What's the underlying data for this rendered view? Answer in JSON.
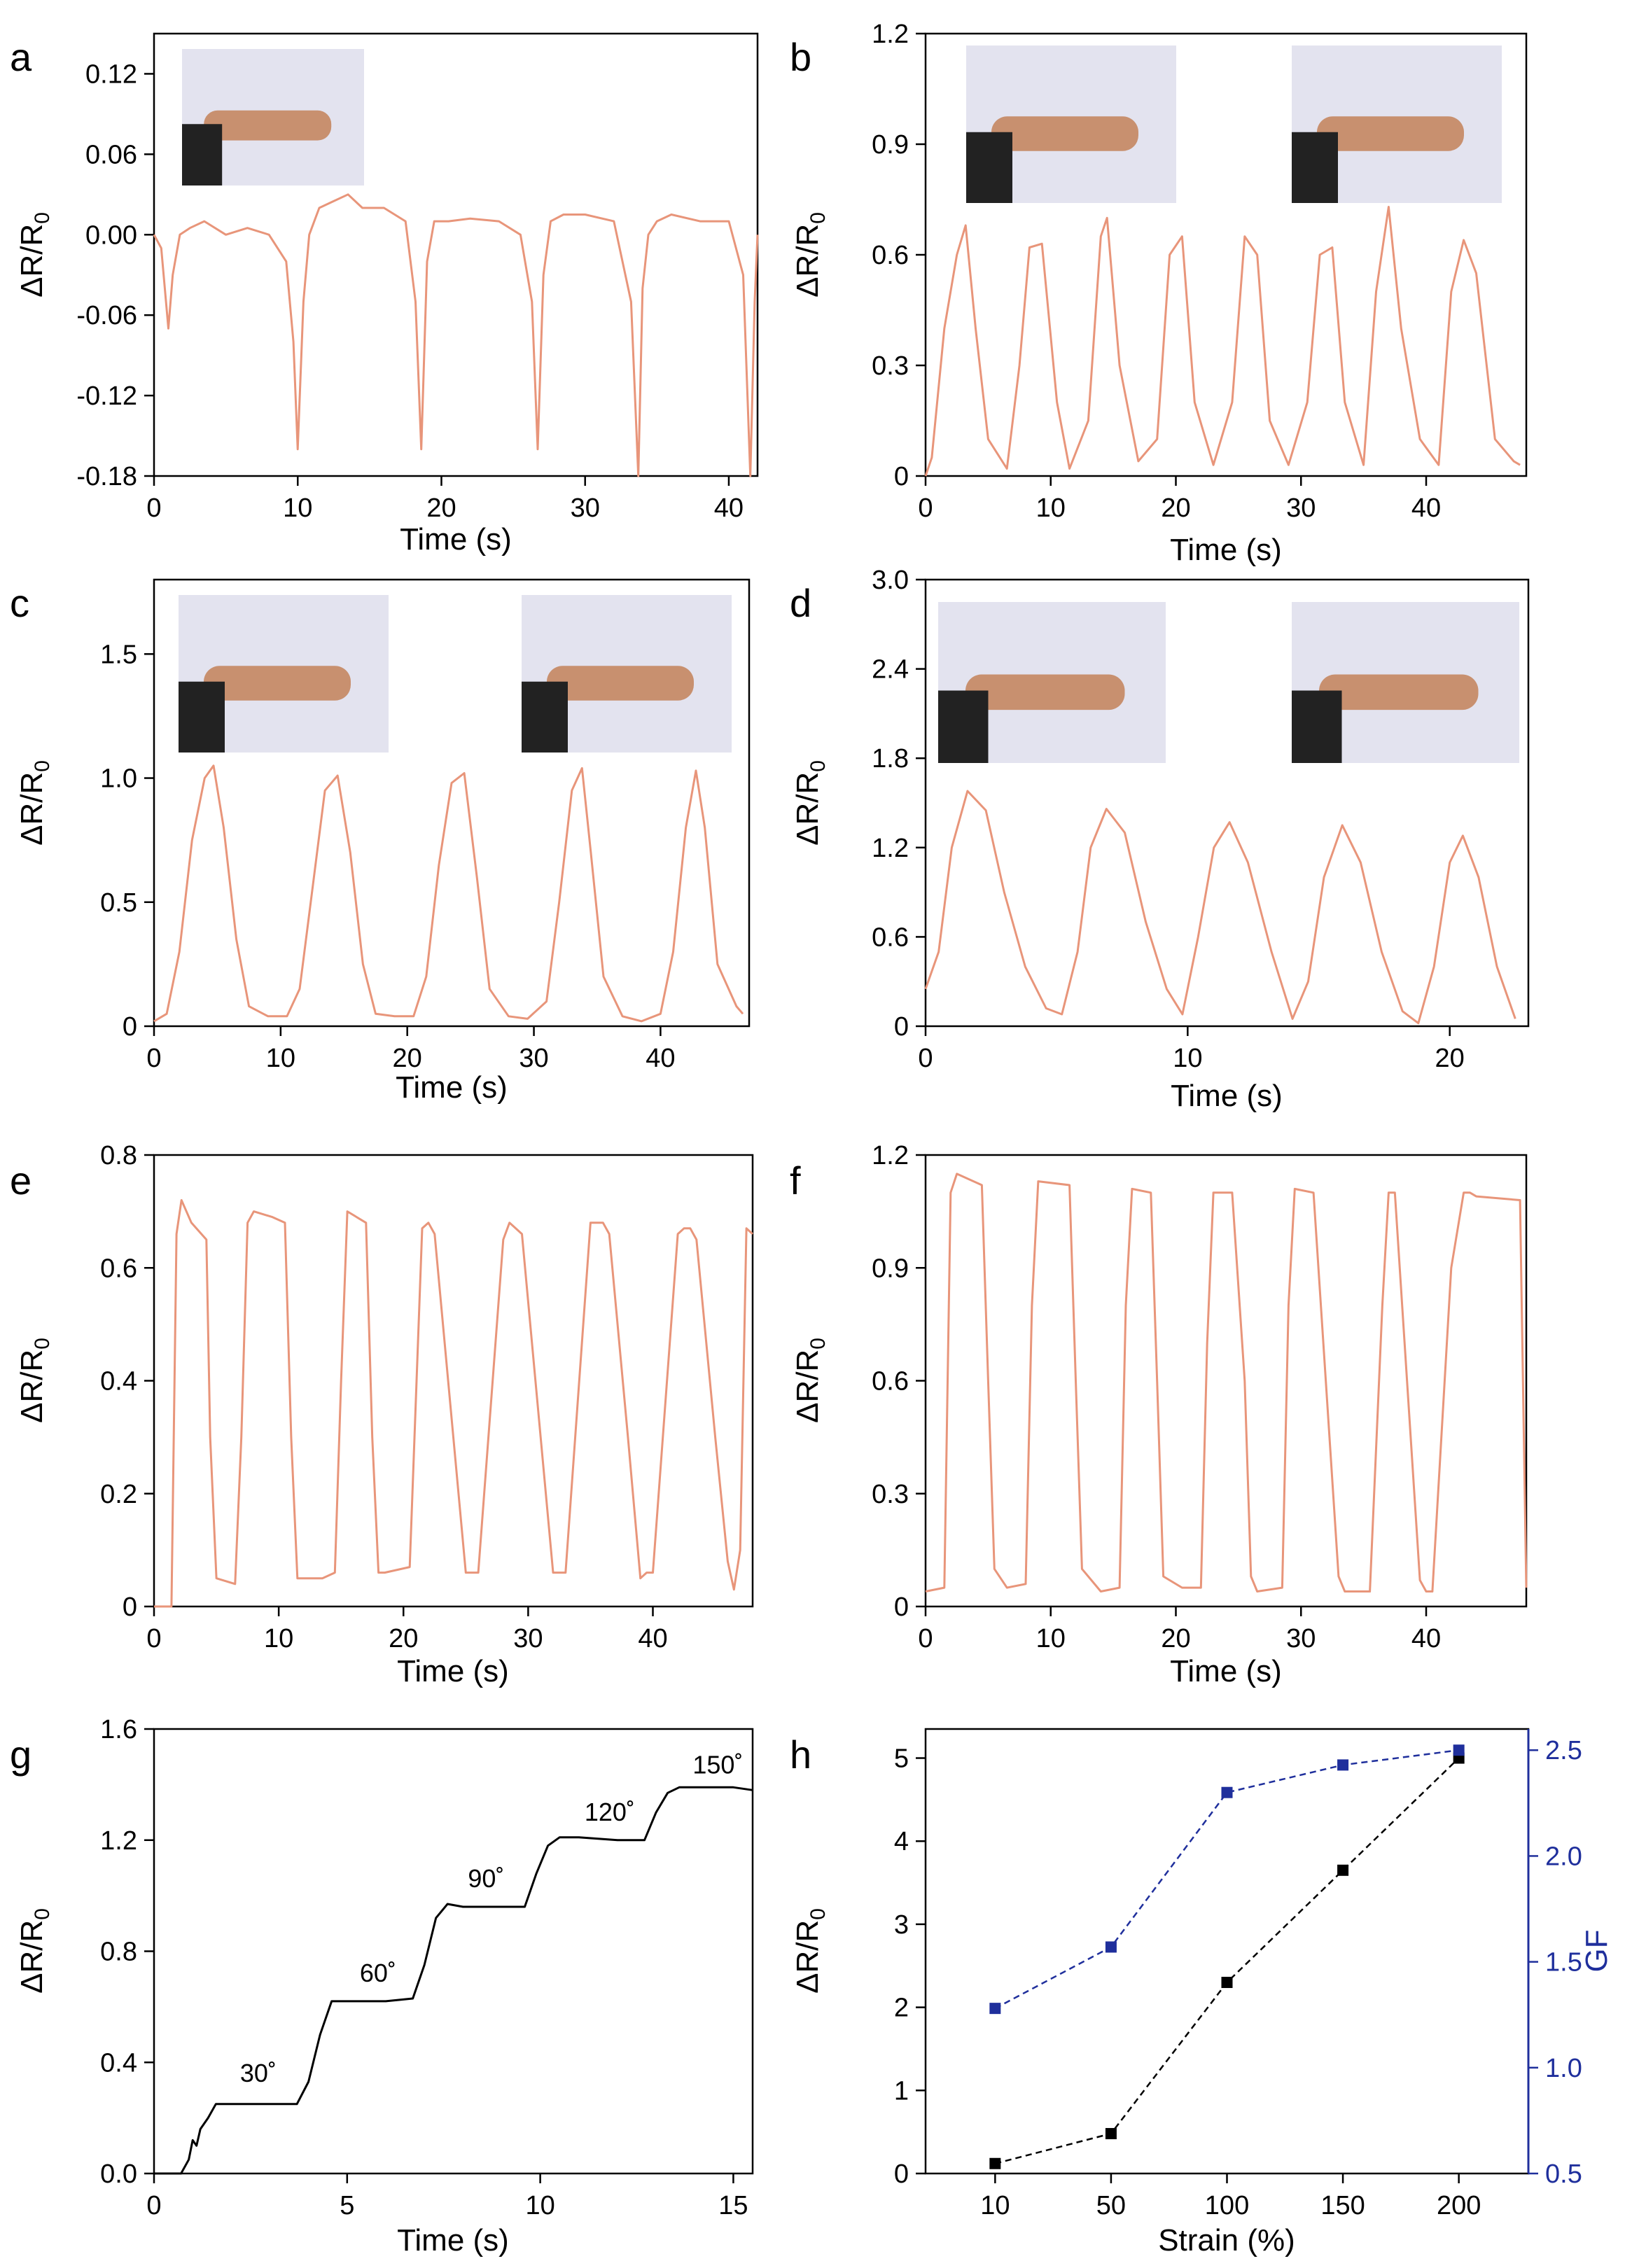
{
  "chart_data": [
    {
      "panel": "a",
      "type": "line",
      "xlabel": "Time (s)",
      "ylabel": "ΔR/R0",
      "xlim": [
        0,
        42
      ],
      "ylim": [
        -0.18,
        0.15
      ],
      "xticks": [
        0,
        10,
        20,
        30,
        40
      ],
      "yticks": [
        -0.18,
        -0.12,
        -0.06,
        0.0,
        0.06,
        0.12
      ],
      "ytick_labels": [
        "-0.18",
        "-0.12",
        "-0.06",
        "0.00",
        "0.06",
        "0.12"
      ],
      "color": "#e8957a",
      "inset_icons": [
        "neck-photo"
      ],
      "x": [
        0,
        0.5,
        1.0,
        1.3,
        1.8,
        2.5,
        3.5,
        5,
        6.5,
        8,
        9.2,
        9.7,
        10.0,
        10.4,
        10.8,
        11.5,
        12.5,
        13.5,
        14.5,
        16,
        17.5,
        18.2,
        18.6,
        19.0,
        19.5,
        20.5,
        22,
        24,
        25.5,
        26.3,
        26.7,
        27.1,
        27.6,
        28.5,
        30,
        32,
        33.2,
        33.7,
        34.0,
        34.4,
        35,
        36,
        38,
        40,
        41.0,
        41.5,
        41.8,
        42
      ],
      "y": [
        0.0,
        -0.01,
        -0.07,
        -0.03,
        0.0,
        0.005,
        0.01,
        0.0,
        0.005,
        0.0,
        -0.02,
        -0.08,
        -0.16,
        -0.05,
        0.0,
        0.02,
        0.025,
        0.03,
        0.02,
        0.02,
        0.01,
        -0.05,
        -0.16,
        -0.02,
        0.01,
        0.01,
        0.012,
        0.01,
        0.0,
        -0.05,
        -0.16,
        -0.03,
        0.01,
        0.015,
        0.015,
        0.01,
        -0.05,
        -0.18,
        -0.04,
        0.0,
        0.01,
        0.015,
        0.01,
        0.01,
        -0.03,
        -0.18,
        -0.05,
        0.0
      ]
    },
    {
      "panel": "b",
      "type": "line",
      "xlabel": "Time (s)",
      "ylabel": "ΔR/R0",
      "xlim": [
        0,
        48
      ],
      "ylim": [
        0,
        1.2
      ],
      "xticks": [
        0,
        10,
        20,
        30,
        40
      ],
      "yticks": [
        0,
        0.3,
        0.6,
        0.9,
        1.2
      ],
      "ytick_labels": [
        "0",
        "0.3",
        "0.6",
        "0.9",
        "1.2"
      ],
      "color": "#e8957a",
      "inset_icons": [
        "finger-straight-photo",
        "finger-bent-photo"
      ],
      "x": [
        0,
        0.5,
        1.5,
        2.5,
        3.2,
        4.0,
        5.0,
        6.5,
        7.5,
        8.3,
        9.3,
        10.5,
        11.5,
        13.0,
        14.0,
        14.5,
        15.5,
        17.0,
        18.5,
        19.5,
        20.5,
        21.5,
        23.0,
        24.5,
        25.5,
        26.5,
        27.5,
        29.0,
        30.5,
        31.5,
        32.5,
        33.5,
        35.0,
        36.0,
        37.0,
        38.0,
        39.5,
        41.0,
        42.0,
        43.0,
        44.0,
        45.5,
        47.0,
        47.5
      ],
      "y": [
        0.0,
        0.05,
        0.4,
        0.6,
        0.68,
        0.4,
        0.1,
        0.02,
        0.3,
        0.62,
        0.63,
        0.2,
        0.02,
        0.15,
        0.65,
        0.7,
        0.3,
        0.04,
        0.1,
        0.6,
        0.65,
        0.2,
        0.03,
        0.2,
        0.65,
        0.6,
        0.15,
        0.03,
        0.2,
        0.6,
        0.62,
        0.2,
        0.03,
        0.5,
        0.73,
        0.4,
        0.1,
        0.03,
        0.5,
        0.64,
        0.55,
        0.1,
        0.04,
        0.03
      ]
    },
    {
      "panel": "c",
      "type": "line",
      "xlabel": "Time (s)",
      "ylabel": "ΔR/R0",
      "xlim": [
        0,
        47
      ],
      "ylim": [
        0,
        1.8
      ],
      "xticks": [
        0,
        10,
        20,
        30,
        40
      ],
      "yticks": [
        0,
        0.5,
        1.0,
        1.5
      ],
      "ytick_labels": [
        "0",
        "0.5",
        "1.0",
        "1.5"
      ],
      "color": "#e8957a",
      "inset_icons": [
        "arm-straight-photo",
        "arm-bent-photo"
      ],
      "x": [
        0,
        1,
        2,
        3,
        4,
        4.7,
        5.5,
        6.5,
        7.5,
        9,
        10.5,
        11.5,
        12.5,
        13.5,
        14.5,
        15.5,
        16.5,
        17.5,
        19,
        20.5,
        21.5,
        22.5,
        23.5,
        24.5,
        25.5,
        26.5,
        28,
        29.5,
        31,
        32,
        33,
        33.8,
        34.5,
        35.5,
        37,
        38.5,
        40,
        41,
        42,
        42.8,
        43.5,
        44.5,
        46,
        46.5
      ],
      "y": [
        0.02,
        0.05,
        0.3,
        0.75,
        1.0,
        1.05,
        0.8,
        0.35,
        0.08,
        0.04,
        0.04,
        0.15,
        0.55,
        0.95,
        1.01,
        0.7,
        0.25,
        0.05,
        0.04,
        0.04,
        0.2,
        0.65,
        0.98,
        1.02,
        0.6,
        0.15,
        0.04,
        0.03,
        0.1,
        0.5,
        0.95,
        1.04,
        0.7,
        0.2,
        0.04,
        0.02,
        0.05,
        0.3,
        0.8,
        1.03,
        0.8,
        0.25,
        0.08,
        0.05
      ]
    },
    {
      "panel": "d",
      "type": "line",
      "xlabel": "Time (s)",
      "ylabel": "ΔR/R0",
      "xlim": [
        0,
        23
      ],
      "ylim": [
        0,
        3.0
      ],
      "xticks": [
        0,
        10,
        20
      ],
      "yticks": [
        0,
        0.6,
        1.2,
        1.8,
        2.4,
        3.0
      ],
      "ytick_labels": [
        "0",
        "0.6",
        "1.2",
        "1.8",
        "2.4",
        "3.0"
      ],
      "color": "#e8957a",
      "inset_icons": [
        "leg-straight-photo",
        "leg-bent-photo"
      ],
      "x": [
        0,
        0.5,
        1.0,
        1.6,
        2.3,
        3.0,
        3.8,
        4.6,
        5.2,
        5.8,
        6.3,
        6.9,
        7.6,
        8.4,
        9.2,
        9.8,
        10.4,
        11.0,
        11.6,
        12.3,
        13.2,
        14.0,
        14.6,
        15.2,
        15.9,
        16.6,
        17.4,
        18.2,
        18.8,
        19.4,
        20.0,
        20.5,
        21.1,
        21.8,
        22.5
      ],
      "y": [
        0.25,
        0.5,
        1.2,
        1.58,
        1.45,
        0.9,
        0.4,
        0.12,
        0.08,
        0.5,
        1.2,
        1.46,
        1.3,
        0.7,
        0.25,
        0.08,
        0.6,
        1.2,
        1.37,
        1.1,
        0.5,
        0.05,
        0.3,
        1.0,
        1.35,
        1.1,
        0.5,
        0.1,
        0.02,
        0.4,
        1.1,
        1.28,
        1.0,
        0.4,
        0.05
      ]
    },
    {
      "panel": "e",
      "type": "line",
      "xlabel": "Time (s)",
      "ylabel": "ΔR/R0",
      "xlim": [
        0,
        48
      ],
      "ylim": [
        0,
        0.8
      ],
      "xticks": [
        0,
        10,
        20,
        30,
        40
      ],
      "yticks": [
        0,
        0.2,
        0.4,
        0.6,
        0.8
      ],
      "ytick_labels": [
        "0",
        "0.2",
        "0.4",
        "0.6",
        "0.8"
      ],
      "color": "#e8957a",
      "x": [
        0,
        1.4,
        1.8,
        2.2,
        3.0,
        4.2,
        4.5,
        5.0,
        6.5,
        7.0,
        7.5,
        8.0,
        9.5,
        10.5,
        11.0,
        11.5,
        13.5,
        14.5,
        15.0,
        15.5,
        17.0,
        17.5,
        18.0,
        18.5,
        20.5,
        21.5,
        22.0,
        22.5,
        24.0,
        25.0,
        25.5,
        26.0,
        28.0,
        28.5,
        29.0,
        29.5,
        31.0,
        32.0,
        32.5,
        33.0,
        35.0,
        35.5,
        36.0,
        36.5,
        38.0,
        39.0,
        39.5,
        40.0,
        42.0,
        42.5,
        43.0,
        43.5,
        45.0,
        46.0,
        46.5,
        47.0,
        47.5,
        48.0
      ],
      "y": [
        0,
        0,
        0.66,
        0.72,
        0.68,
        0.65,
        0.3,
        0.05,
        0.04,
        0.3,
        0.68,
        0.7,
        0.69,
        0.68,
        0.3,
        0.05,
        0.05,
        0.06,
        0.4,
        0.7,
        0.68,
        0.3,
        0.06,
        0.06,
        0.07,
        0.67,
        0.68,
        0.66,
        0.3,
        0.06,
        0.06,
        0.06,
        0.65,
        0.68,
        0.67,
        0.66,
        0.3,
        0.06,
        0.06,
        0.06,
        0.68,
        0.68,
        0.68,
        0.66,
        0.3,
        0.05,
        0.06,
        0.06,
        0.66,
        0.67,
        0.67,
        0.65,
        0.3,
        0.08,
        0.03,
        0.1,
        0.67,
        0.66
      ]
    },
    {
      "panel": "f",
      "type": "line",
      "xlabel": "Time (s)",
      "ylabel": "ΔR/R0",
      "xlim": [
        0,
        48
      ],
      "ylim": [
        0,
        1.2
      ],
      "xticks": [
        0,
        10,
        20,
        30,
        40
      ],
      "yticks": [
        0,
        0.3,
        0.6,
        0.9,
        1.2
      ],
      "ytick_labels": [
        "0",
        "0.3",
        "0.6",
        "0.9",
        "1.2"
      ],
      "color": "#e8957a",
      "x": [
        0,
        1.5,
        2.0,
        2.5,
        4.5,
        5.0,
        5.5,
        6.5,
        8.0,
        8.5,
        9.0,
        11.5,
        12.0,
        12.5,
        14.0,
        15.5,
        16.0,
        16.5,
        18.0,
        18.5,
        19.0,
        20.5,
        22.0,
        22.5,
        23.0,
        24.5,
        25.5,
        26.0,
        26.5,
        28.5,
        29.0,
        29.5,
        31.0,
        33.0,
        33.5,
        34.0,
        35.5,
        36.5,
        37.0,
        37.5,
        39.5,
        40.0,
        40.5,
        42.0,
        43.0,
        43.5,
        44.0,
        47.5,
        48.0
      ],
      "y": [
        0.04,
        0.05,
        1.1,
        1.15,
        1.12,
        0.6,
        0.1,
        0.05,
        0.06,
        0.8,
        1.13,
        1.12,
        0.6,
        0.1,
        0.04,
        0.05,
        0.8,
        1.11,
        1.1,
        0.6,
        0.08,
        0.05,
        0.05,
        0.7,
        1.1,
        1.1,
        0.6,
        0.08,
        0.04,
        0.05,
        0.8,
        1.11,
        1.1,
        0.08,
        0.04,
        0.04,
        0.04,
        0.8,
        1.1,
        1.1,
        0.07,
        0.04,
        0.04,
        0.9,
        1.1,
        1.1,
        1.09,
        1.08,
        0.05
      ]
    },
    {
      "panel": "g",
      "type": "line",
      "xlabel": "Time (s)",
      "ylabel": "ΔR/R0",
      "xlim": [
        0,
        15.5
      ],
      "ylim": [
        0,
        1.6
      ],
      "xticks": [
        0,
        5,
        10,
        15
      ],
      "yticks": [
        0.0,
        0.4,
        0.8,
        1.2,
        1.6
      ],
      "ytick_labels": [
        "0.0",
        "0.4",
        "0.8",
        "1.2",
        "1.6"
      ],
      "color": "#000000",
      "annotations": [
        {
          "text": "30˚",
          "x": 2.7,
          "y": 0.33
        },
        {
          "text": "60˚",
          "x": 5.8,
          "y": 0.69
        },
        {
          "text": "90˚",
          "x": 8.6,
          "y": 1.03
        },
        {
          "text": "120˚",
          "x": 11.8,
          "y": 1.27
        },
        {
          "text": "150˚",
          "x": 14.6,
          "y": 1.44
        }
      ],
      "x": [
        0,
        0.7,
        0.9,
        1.0,
        1.1,
        1.2,
        1.4,
        1.6,
        2.0,
        3.0,
        3.7,
        4.0,
        4.3,
        4.6,
        5.0,
        6.0,
        6.7,
        7.0,
        7.3,
        7.6,
        8.0,
        9.0,
        9.6,
        9.9,
        10.2,
        10.5,
        11.0,
        12.0,
        12.7,
        13.0,
        13.3,
        13.6,
        14.0,
        15.0,
        15.5
      ],
      "y": [
        0,
        0,
        0.05,
        0.12,
        0.1,
        0.16,
        0.2,
        0.25,
        0.25,
        0.25,
        0.25,
        0.33,
        0.5,
        0.62,
        0.62,
        0.62,
        0.63,
        0.75,
        0.92,
        0.97,
        0.96,
        0.96,
        0.96,
        1.08,
        1.18,
        1.21,
        1.21,
        1.2,
        1.2,
        1.3,
        1.37,
        1.39,
        1.39,
        1.39,
        1.38
      ]
    },
    {
      "panel": "h",
      "type": "line",
      "xlabel": "Strain (%)",
      "categories": [
        "10",
        "50",
        "100",
        "150",
        "200"
      ],
      "series": [
        {
          "axis": "left",
          "label": "ΔR/R0",
          "values": [
            0.12,
            0.48,
            2.3,
            3.65,
            5.0
          ],
          "color": "#000000",
          "ylim": [
            0,
            5.35
          ],
          "yticks": [
            0,
            1,
            2,
            3,
            4,
            5
          ],
          "ytick_labels": [
            "0",
            "1",
            "2",
            "3",
            "4",
            "5"
          ]
        },
        {
          "axis": "right",
          "label": "GF",
          "values": [
            1.28,
            1.57,
            2.3,
            2.43,
            2.5
          ],
          "color": "#1f2f9c",
          "ylim": [
            0.5,
            2.6
          ],
          "yticks": [
            0.5,
            1.0,
            1.5,
            2.0,
            2.5
          ],
          "ytick_labels": [
            "0.5",
            "1.0",
            "1.5",
            "2.0",
            "2.5"
          ]
        }
      ]
    }
  ]
}
